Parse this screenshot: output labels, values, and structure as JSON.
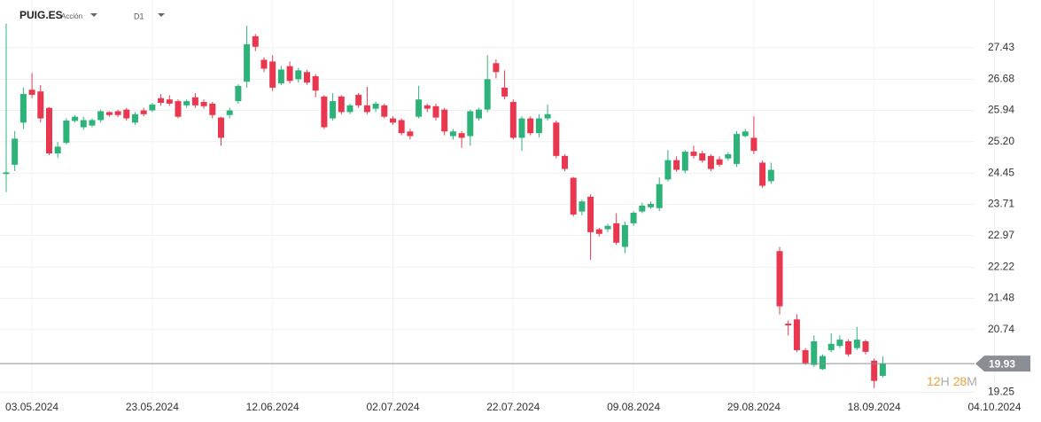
{
  "header": {
    "symbol": "PUIG.ES",
    "instrument_type": "Acción",
    "timeframe": "D1"
  },
  "chart_data": {
    "type": "candlestick",
    "series": [
      {
        "up_color": "#2db37a",
        "down_color": "#e8374e",
        "open": [
          24.43,
          24.65,
          25.65,
          26.43,
          26.39,
          26.0,
          24.92,
          25.17,
          25.69,
          25.54,
          25.58,
          25.71,
          25.9,
          25.92,
          25.96,
          25.65,
          25.94,
          25.94,
          26.23,
          26.2,
          26.16,
          26.06,
          26.25,
          26.14,
          26.1,
          25.77,
          25.83,
          26.16,
          26.62,
          27.7,
          27.14,
          27.1,
          26.58,
          26.99,
          26.68,
          26.85,
          26.75,
          26.27,
          25.75,
          26.27,
          25.9,
          26.31,
          26.06,
          25.98,
          26.06,
          25.75,
          25.71,
          25.44,
          25.79,
          26.06,
          26.04,
          25.96,
          25.33,
          25.4,
          25.33,
          25.75,
          25.96,
          27.06,
          26.48,
          26.14,
          25.29,
          25.75,
          25.4,
          25.75,
          25.65,
          24.86,
          24.34,
          23.54,
          23.89,
          23.12,
          23.12,
          23.26,
          22.7,
          23.26,
          23.54,
          23.64,
          23.62,
          24.3,
          24.76,
          24.51,
          24.96,
          24.92,
          24.86,
          24.78,
          24.8,
          24.67,
          25.33,
          25.29,
          24.7,
          24.26,
          22.6,
          20.88,
          20.98,
          20.25,
          19.9,
          19.8,
          20.25,
          20.35,
          20.46,
          20.3,
          20.46,
          20.0,
          19.64
        ],
        "high": [
          28.0,
          25.45,
          26.48,
          26.83,
          26.54,
          26.02,
          25.19,
          25.75,
          25.83,
          25.79,
          25.75,
          25.96,
          25.92,
          25.96,
          26.0,
          25.9,
          26.0,
          26.12,
          26.33,
          26.3,
          26.2,
          26.2,
          26.35,
          26.2,
          26.14,
          25.79,
          26.0,
          26.56,
          27.95,
          27.75,
          27.2,
          27.25,
          27.0,
          27.1,
          26.95,
          26.9,
          26.8,
          26.3,
          26.35,
          26.3,
          26.1,
          26.35,
          26.5,
          26.15,
          26.1,
          25.8,
          25.75,
          25.5,
          26.52,
          26.1,
          26.1,
          26.0,
          25.5,
          25.45,
          25.96,
          26.0,
          27.25,
          27.15,
          26.89,
          26.2,
          25.8,
          25.8,
          25.85,
          26.08,
          25.7,
          24.9,
          24.36,
          23.82,
          23.95,
          23.15,
          23.25,
          23.5,
          23.3,
          23.55,
          23.75,
          23.78,
          24.35,
          25.0,
          24.85,
          25.0,
          25.1,
          24.98,
          24.9,
          24.85,
          24.95,
          25.45,
          25.5,
          25.8,
          24.75,
          24.7,
          22.7,
          20.95,
          21.1,
          20.3,
          20.6,
          20.15,
          20.65,
          20.6,
          20.5,
          20.8,
          20.5,
          20.05,
          20.1
        ],
        "low": [
          24.0,
          24.5,
          25.5,
          26.23,
          25.65,
          24.88,
          24.82,
          25.13,
          25.65,
          25.48,
          25.54,
          25.65,
          25.79,
          25.78,
          25.7,
          25.6,
          25.8,
          25.9,
          26.05,
          26.05,
          25.75,
          26.0,
          26.0,
          25.98,
          25.75,
          25.1,
          25.75,
          26.1,
          26.48,
          27.35,
          26.85,
          26.4,
          26.54,
          26.58,
          26.6,
          26.55,
          26.25,
          25.5,
          25.7,
          25.85,
          25.85,
          26.0,
          25.85,
          25.9,
          25.75,
          25.6,
          25.35,
          25.25,
          25.75,
          25.9,
          25.7,
          25.35,
          25.25,
          25.05,
          25.1,
          25.7,
          25.9,
          26.7,
          26.2,
          25.25,
          24.98,
          25.35,
          25.3,
          25.7,
          24.8,
          24.5,
          23.42,
          23.45,
          22.39,
          22.95,
          23.05,
          22.75,
          22.55,
          23.2,
          23.5,
          23.6,
          23.55,
          24.25,
          24.48,
          24.45,
          24.8,
          24.7,
          24.5,
          24.6,
          24.75,
          24.6,
          25.3,
          24.9,
          24.1,
          24.2,
          21.1,
          20.6,
          20.2,
          19.9,
          19.85,
          19.78,
          20.2,
          20.3,
          20.1,
          20.25,
          20.15,
          19.35,
          19.6
        ],
        "close": [
          24.47,
          25.27,
          26.33,
          26.31,
          25.75,
          24.92,
          25.08,
          25.7,
          25.79,
          25.71,
          25.71,
          25.92,
          25.83,
          25.83,
          25.75,
          25.85,
          25.85,
          26.08,
          26.12,
          26.1,
          25.79,
          26.16,
          26.06,
          26.04,
          25.83,
          25.29,
          25.94,
          26.52,
          27.51,
          27.45,
          26.93,
          26.48,
          26.91,
          26.64,
          26.89,
          26.6,
          26.41,
          25.54,
          26.16,
          25.9,
          26.06,
          26.06,
          25.9,
          26.1,
          25.79,
          25.65,
          25.4,
          25.33,
          26.2,
          25.98,
          25.77,
          25.44,
          25.44,
          25.29,
          25.92,
          25.96,
          26.68,
          26.85,
          26.27,
          25.29,
          25.75,
          25.4,
          25.75,
          25.85,
          24.86,
          24.55,
          23.47,
          23.78,
          23.05,
          23.01,
          23.2,
          22.8,
          23.22,
          23.51,
          23.68,
          23.72,
          24.19,
          24.76,
          24.53,
          24.96,
          24.86,
          24.75,
          24.55,
          24.65,
          24.9,
          25.38,
          25.44,
          24.98,
          24.15,
          24.53,
          21.29,
          20.84,
          20.25,
          19.94,
          20.46,
          20.11,
          20.4,
          20.5,
          20.15,
          20.5,
          20.21,
          19.52,
          19.93
        ]
      }
    ],
    "xlim": [
      -0.72,
      112.68
    ],
    "xticks": [
      {
        "value": 3,
        "label": "03.05.2024"
      },
      {
        "value": 17,
        "label": "23.05.2024"
      },
      {
        "value": 31,
        "label": "12.06.2024"
      },
      {
        "value": 45,
        "label": "02.07.2024"
      },
      {
        "value": 59,
        "label": "22.07.2024"
      },
      {
        "value": 73,
        "label": "09.08.2024"
      },
      {
        "value": 87,
        "label": "29.08.2024"
      },
      {
        "value": 101,
        "label": "18.09.2024"
      },
      {
        "value": 115,
        "label": "04.10.2024"
      }
    ],
    "ylim": [
      19.05,
      28.56
    ],
    "yticks": [
      27.43,
      26.68,
      25.94,
      {
        "value": 25.2,
        "label": "25.20"
      },
      24.45,
      23.71,
      22.97,
      22.22,
      21.48,
      20.74,
      19.25
    ],
    "grid": true,
    "last_price": 19.93,
    "last_price_color": "#8a8f96",
    "countdown": {
      "hours": "12",
      "hours_unit": "H",
      "minutes": "28",
      "minutes_unit": "M"
    }
  }
}
